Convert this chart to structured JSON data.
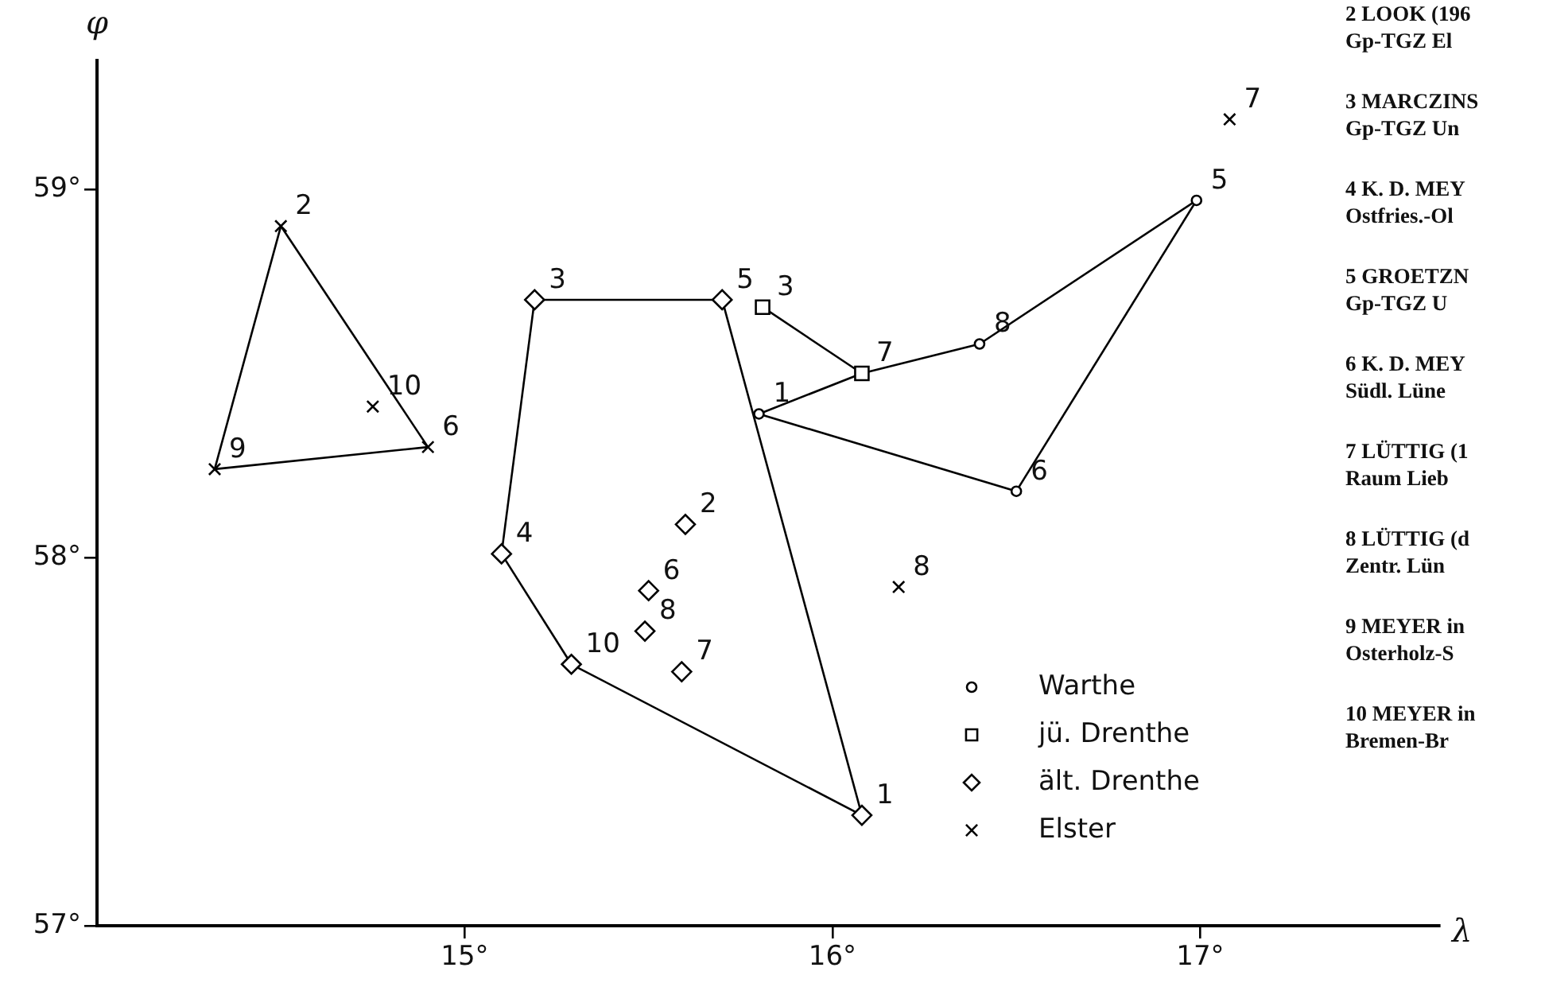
{
  "chart_data": {
    "type": "scatter",
    "xlabel": "λ",
    "ylabel": "φ",
    "xlim": [
      14.0,
      17.65
    ],
    "ylim": [
      57,
      59.35
    ],
    "xticks": [
      {
        "value": 15,
        "label": "15°"
      },
      {
        "value": 16,
        "label": "16°"
      },
      {
        "value": 17,
        "label": "17°"
      }
    ],
    "yticks": [
      {
        "value": 57,
        "label": "57°"
      },
      {
        "value": 58,
        "label": "58°"
      },
      {
        "value": 59,
        "label": "59°"
      }
    ],
    "grid": false,
    "legend": "bottom right",
    "series": [
      {
        "name": "Warthe",
        "type": "scatter",
        "marker": "circle",
        "color": "#000000",
        "x": [
          15.8,
          16.4,
          16.99,
          16.5
        ],
        "values": [
          58.39,
          58.58,
          58.97,
          58.18
        ]
      },
      {
        "name": "jü. Drenthe",
        "type": "scatter",
        "marker": "square",
        "color": "#000000",
        "x": [
          15.81,
          16.08
        ],
        "values": [
          58.68,
          58.5
        ]
      },
      {
        "name": "ält. Drenthe",
        "type": "scatter",
        "marker": "diamond",
        "color": "#000000",
        "x": [
          15.19,
          15.7,
          16.08,
          15.29,
          15.1,
          15.6,
          15.5,
          15.49,
          15.59
        ],
        "values": [
          58.7,
          58.7,
          57.3,
          57.71,
          58.01,
          58.09,
          57.91,
          57.8,
          57.69
        ]
      },
      {
        "name": "Elster",
        "type": "scatter",
        "marker": "cross",
        "color": "#000000",
        "x": [
          14.5,
          14.9,
          14.32,
          14.75,
          16.18,
          17.08
        ],
        "values": [
          58.9,
          58.3,
          58.24,
          58.41,
          57.92,
          59.19
        ]
      },
      {
        "type": "line",
        "marker": "none",
        "color": "#000000",
        "x": [
          15.8,
          16.08
        ],
        "values": [
          58.39,
          58.5
        ]
      },
      {
        "type": "line",
        "marker": "none",
        "color": "#000000",
        "x": [
          16.08,
          16.4
        ],
        "values": [
          58.5,
          58.58
        ]
      },
      {
        "type": "line",
        "marker": "none",
        "color": "#000000",
        "x": [
          16.4,
          16.99
        ],
        "values": [
          58.58,
          58.97
        ]
      },
      {
        "type": "line",
        "marker": "none",
        "color": "#000000",
        "x": [
          16.5,
          16.99
        ],
        "values": [
          58.18,
          58.97
        ]
      },
      {
        "type": "line",
        "marker": "none",
        "color": "#000000",
        "x": [
          15.8,
          16.5
        ],
        "values": [
          58.39,
          58.18
        ]
      },
      {
        "type": "line",
        "marker": "none",
        "color": "#000000",
        "x": [
          15.81,
          16.08
        ],
        "values": [
          58.68,
          58.5
        ]
      },
      {
        "type": "line",
        "marker": "none",
        "color": "#000000",
        "x": [
          15.19,
          15.7
        ],
        "values": [
          58.7,
          58.7
        ]
      },
      {
        "type": "line",
        "marker": "none",
        "color": "#000000",
        "x": [
          15.7,
          16.08
        ],
        "values": [
          58.7,
          57.3
        ]
      },
      {
        "type": "line",
        "marker": "none",
        "color": "#000000",
        "x": [
          15.29,
          16.08
        ],
        "values": [
          57.71,
          57.3
        ]
      },
      {
        "type": "line",
        "marker": "none",
        "color": "#000000",
        "x": [
          15.1,
          15.29
        ],
        "values": [
          58.01,
          57.71
        ]
      },
      {
        "type": "line",
        "marker": "none",
        "color": "#000000",
        "x": [
          15.1,
          15.19
        ],
        "values": [
          58.01,
          58.7
        ]
      },
      {
        "type": "line",
        "marker": "none",
        "color": "#000000",
        "x": [
          14.32,
          14.5
        ],
        "values": [
          58.24,
          58.9
        ]
      },
      {
        "type": "line",
        "marker": "none",
        "color": "#000000",
        "x": [
          14.5,
          14.9
        ],
        "values": [
          58.9,
          58.3
        ]
      },
      {
        "type": "line",
        "marker": "none",
        "color": "#000000",
        "x": [
          14.32,
          14.9
        ],
        "values": [
          58.24,
          58.3
        ]
      }
    ],
    "annotations": [
      {
        "text": "1",
        "x": 15.8,
        "y": 58.39
      },
      {
        "text": "8",
        "x": 16.4,
        "y": 58.58
      },
      {
        "text": "5",
        "x": 16.99,
        "y": 58.97
      },
      {
        "text": "6",
        "x": 16.5,
        "y": 58.18
      },
      {
        "text": "3",
        "x": 15.81,
        "y": 58.68
      },
      {
        "text": "7",
        "x": 16.08,
        "y": 58.5
      },
      {
        "text": "3",
        "x": 15.19,
        "y": 58.7
      },
      {
        "text": "5",
        "x": 15.7,
        "y": 58.7
      },
      {
        "text": "1",
        "x": 16.08,
        "y": 57.3
      },
      {
        "text": "10",
        "x": 15.29,
        "y": 57.71
      },
      {
        "text": "4",
        "x": 15.1,
        "y": 58.01
      },
      {
        "text": "2",
        "x": 15.6,
        "y": 58.09
      },
      {
        "text": "6",
        "x": 15.5,
        "y": 57.91
      },
      {
        "text": "8",
        "x": 15.49,
        "y": 57.8
      },
      {
        "text": "7",
        "x": 15.59,
        "y": 57.69
      },
      {
        "text": "2",
        "x": 14.5,
        "y": 58.9
      },
      {
        "text": "6",
        "x": 14.9,
        "y": 58.3
      },
      {
        "text": "9",
        "x": 14.32,
        "y": 58.24
      },
      {
        "text": "10",
        "x": 14.75,
        "y": 58.41
      },
      {
        "text": "8",
        "x": 16.18,
        "y": 57.92
      },
      {
        "text": "7",
        "x": 17.08,
        "y": 59.19
      },
      "2 LOOK (196\nGp-TGZ El",
      "3 MARCZINS\nGp-TGZ Un",
      "4 K. D. MEY\nOstfries.-Ol",
      "5 GROETZN\nGp-TGZ U",
      "6 K. D. MEY\nSüdl. Lüne",
      "7 LÜTTIG (1\nRaum Lieb",
      "8 LÜTTIG (d\nZentr. Lün",
      "9 MEYER in\nOsterholz-S",
      "10 MEYER in\nBremen-Br"
    ]
  }
}
